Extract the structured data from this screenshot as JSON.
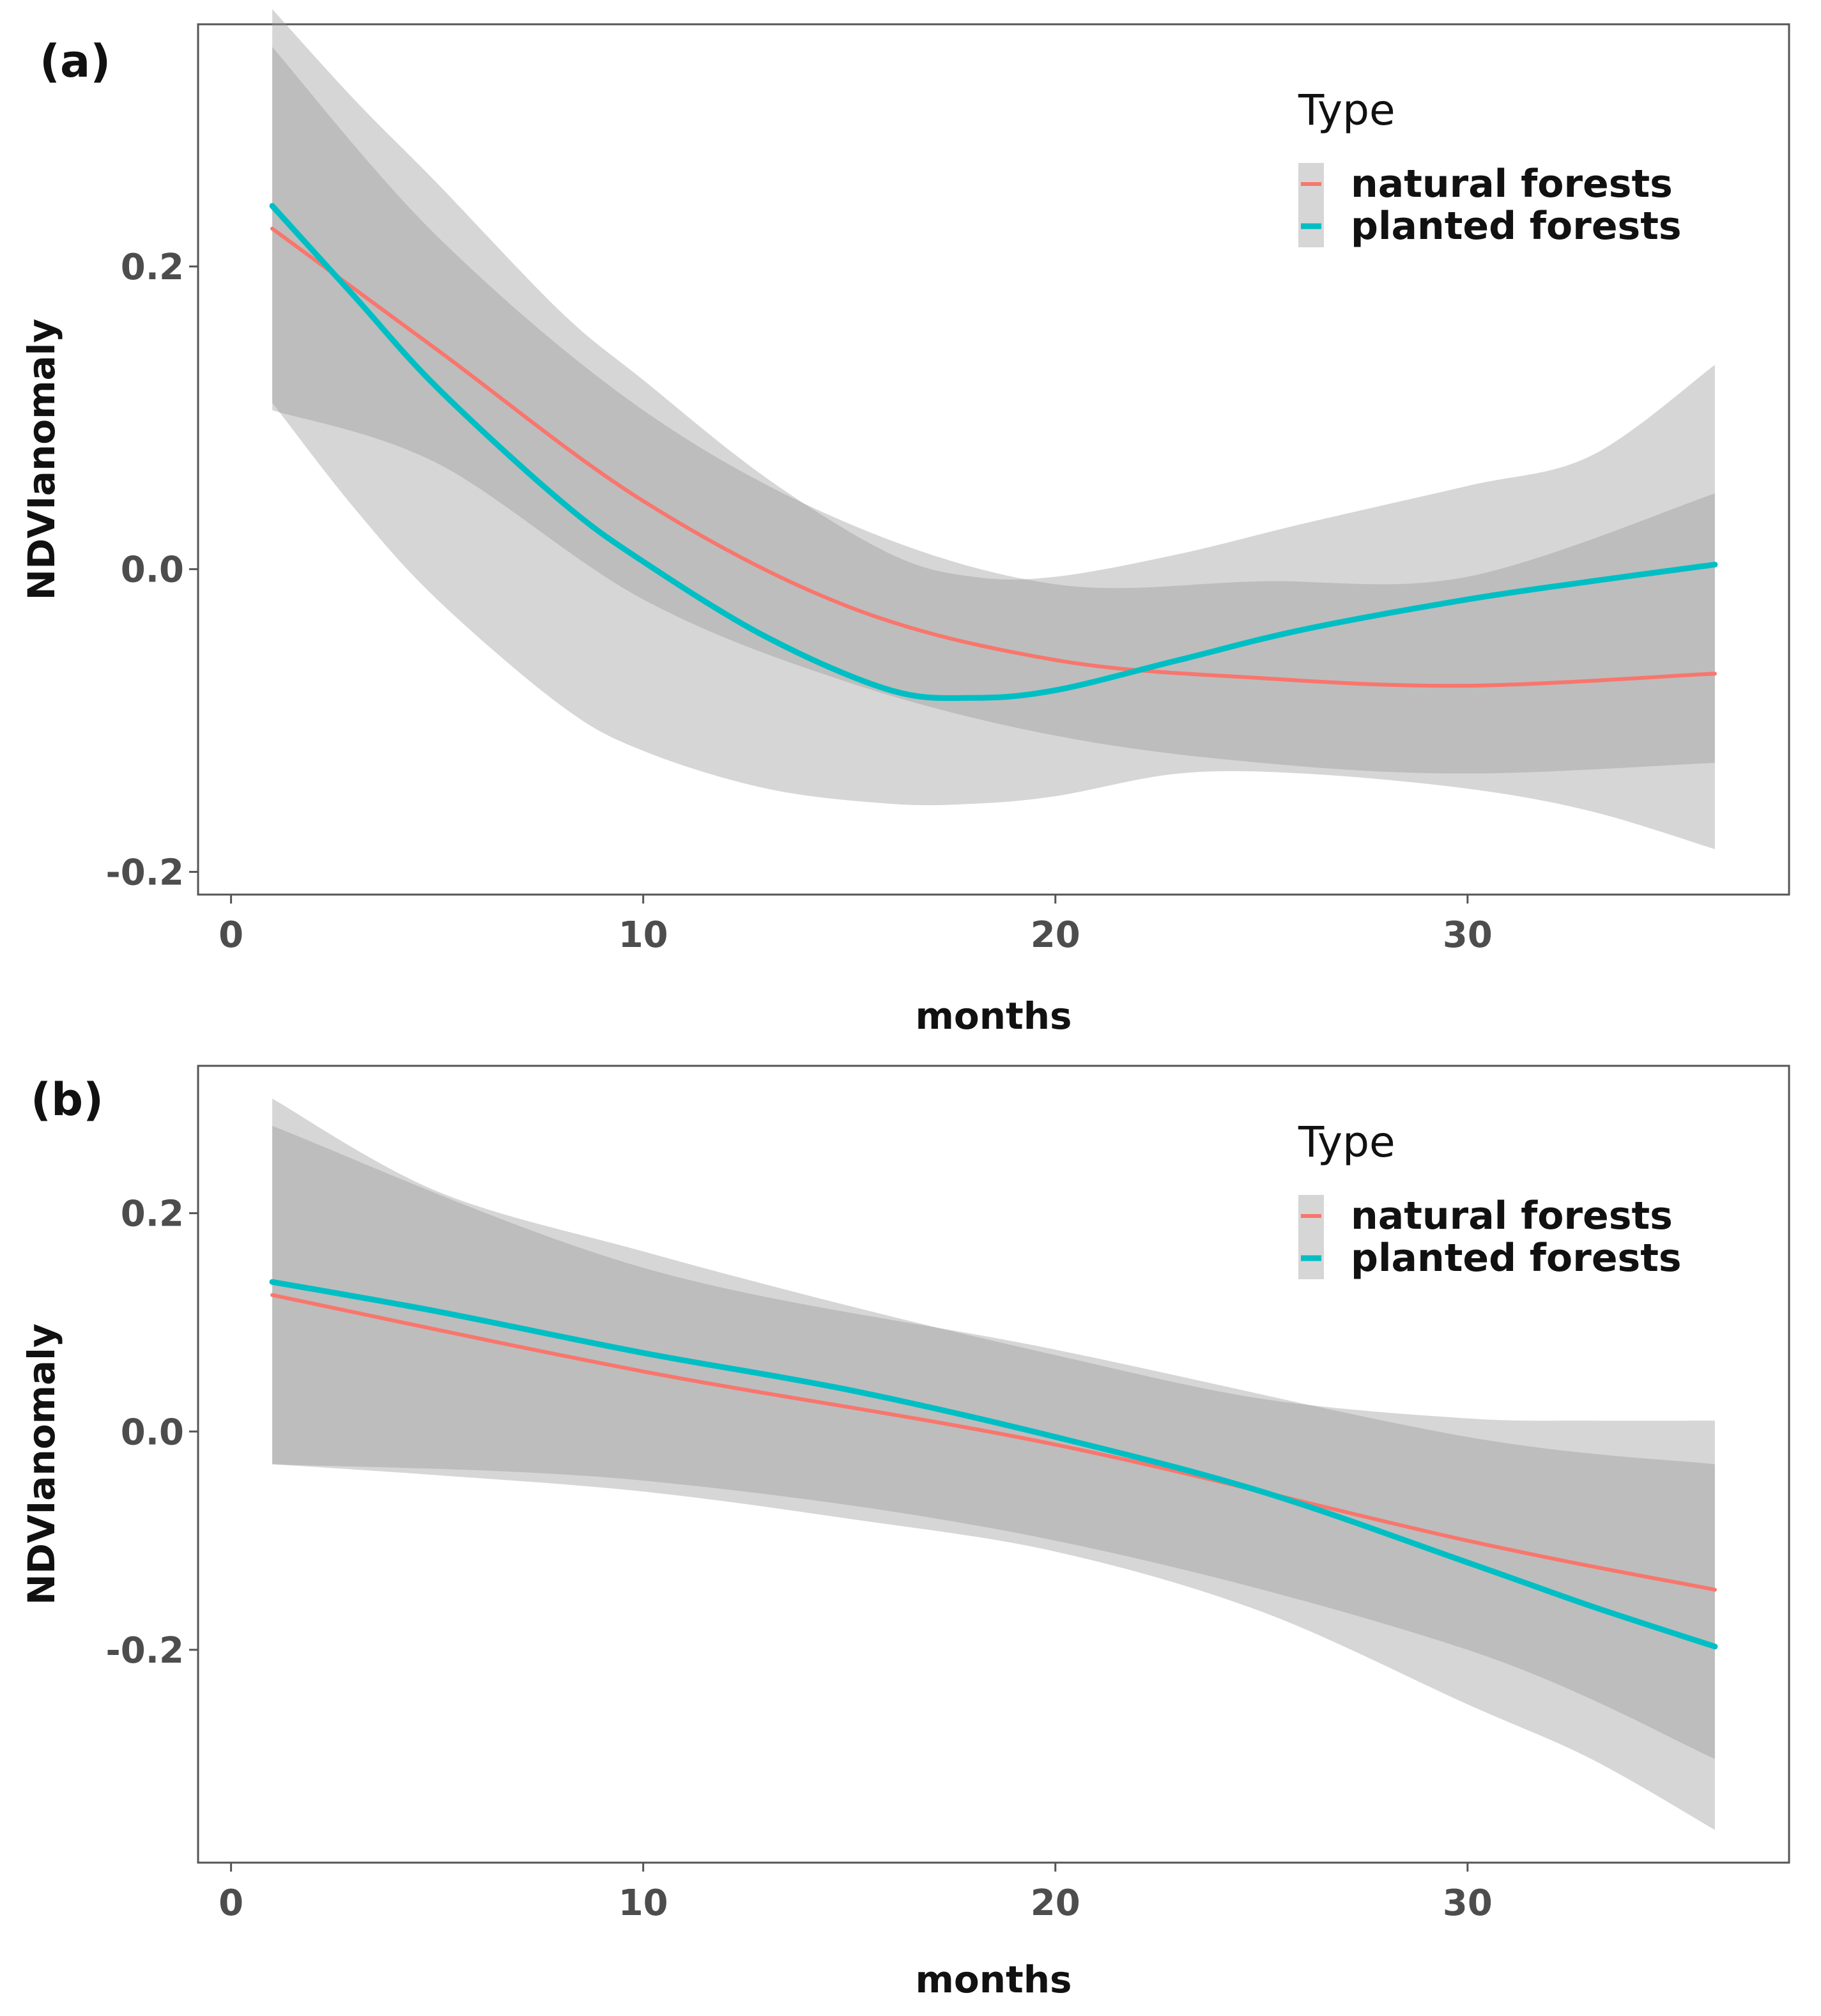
{
  "chart_data": [
    {
      "panel": "(a)",
      "type": "line",
      "xlabel": "months",
      "ylabel": "NDVIanomaly",
      "xlim": [
        -0.8,
        37.8
      ],
      "ylim": [
        -0.215,
        0.36
      ],
      "xticks": [
        0,
        10,
        20,
        30
      ],
      "yticks": [
        -0.2,
        0.0,
        0.2
      ],
      "ytick_labels": [
        "-0.2",
        "0.0",
        "0.2"
      ],
      "grid": false,
      "legend": {
        "title": "Type",
        "position": "top-right",
        "entries": [
          "natural forests",
          "planted forests"
        ]
      },
      "series": [
        {
          "name": "natural forests",
          "color": "#F8766D",
          "x": [
            1,
            5,
            10,
            15,
            20,
            25,
            30,
            36
          ],
          "y": [
            0.225,
            0.145,
            0.045,
            -0.025,
            -0.06,
            -0.072,
            -0.077,
            -0.069
          ],
          "lower": [
            0.105,
            0.07,
            -0.02,
            -0.075,
            -0.11,
            -0.128,
            -0.135,
            -0.128
          ],
          "upper": [
            0.345,
            0.22,
            0.105,
            0.03,
            -0.01,
            -0.008,
            -0.005,
            0.05
          ]
        },
        {
          "name": "planted forests",
          "color": "#00BFC4",
          "x": [
            1,
            3,
            5,
            8,
            10,
            13,
            16,
            18,
            20,
            23,
            26,
            30,
            33,
            36
          ],
          "y": [
            0.24,
            0.18,
            0.12,
            0.045,
            0.005,
            -0.045,
            -0.08,
            -0.085,
            -0.08,
            -0.06,
            -0.04,
            -0.02,
            -0.008,
            0.003
          ],
          "lower": [
            0.11,
            0.04,
            -0.02,
            -0.09,
            -0.12,
            -0.145,
            -0.155,
            -0.155,
            -0.15,
            -0.135,
            -0.135,
            -0.145,
            -0.16,
            -0.185
          ],
          "upper": [
            0.37,
            0.31,
            0.255,
            0.17,
            0.125,
            0.06,
            0.01,
            -0.005,
            -0.005,
            0.01,
            0.03,
            0.055,
            0.075,
            0.135
          ]
        }
      ]
    },
    {
      "panel": "(b)",
      "type": "line",
      "xlabel": "months",
      "ylabel": "NDVIanomaly",
      "xlim": [
        -0.8,
        37.8
      ],
      "ylim": [
        -0.395,
        0.335
      ],
      "xticks": [
        0,
        10,
        20,
        30
      ],
      "yticks": [
        -0.2,
        0.0,
        0.2
      ],
      "ytick_labels": [
        "-0.2",
        "0.0",
        "0.2"
      ],
      "grid": false,
      "legend": {
        "title": "Type",
        "position": "top-right",
        "entries": [
          "natural forests",
          "planted forests"
        ]
      },
      "series": [
        {
          "name": "natural forests",
          "color": "#F8766D",
          "x": [
            1,
            10,
            20,
            30,
            36
          ],
          "y": [
            0.125,
            0.055,
            -0.012,
            -0.1,
            -0.145
          ],
          "lower": [
            -0.03,
            -0.045,
            -0.1,
            -0.2,
            -0.3
          ],
          "upper": [
            0.28,
            0.15,
            0.075,
            -0.005,
            -0.03
          ]
        },
        {
          "name": "planted forests",
          "color": "#00BFC4",
          "x": [
            1,
            5,
            10,
            15,
            20,
            25,
            30,
            33,
            36
          ],
          "y": [
            0.137,
            0.11,
            0.072,
            0.038,
            -0.005,
            -0.055,
            -0.12,
            -0.16,
            -0.197
          ],
          "lower": [
            -0.03,
            -0.04,
            -0.055,
            -0.08,
            -0.11,
            -0.165,
            -0.25,
            -0.3,
            -0.365
          ],
          "upper": [
            0.305,
            0.22,
            0.165,
            0.115,
            0.07,
            0.03,
            0.012,
            0.01,
            0.01
          ]
        }
      ]
    }
  ]
}
